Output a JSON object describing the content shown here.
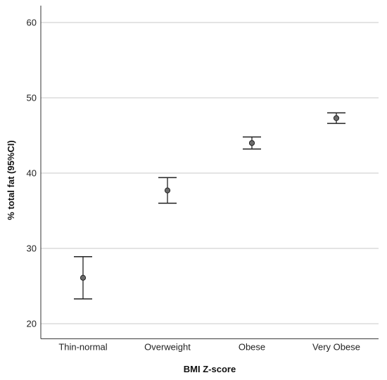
{
  "chart_data": {
    "type": "errorbar",
    "title": "",
    "xlabel": "BMI Z-score",
    "ylabel": "% total fat (95%CI)",
    "categories": [
      "Thin-normal",
      "Overweight",
      "Obese",
      "Very Obese"
    ],
    "series": [
      {
        "mean": [
          26.1,
          37.7,
          44.0,
          47.3
        ],
        "ci_low": [
          23.3,
          36.0,
          43.2,
          46.6
        ],
        "ci_high": [
          28.9,
          39.4,
          44.8,
          48.0
        ]
      }
    ],
    "ylim": [
      18,
      62
    ],
    "yticks": [
      20,
      30,
      40,
      50,
      60
    ],
    "grid": "horizontal",
    "colors": {
      "grid": "#c8c8c8",
      "axis": "#333333",
      "marker_fill": "#6b6b6b",
      "errorbar": "#222222"
    }
  }
}
